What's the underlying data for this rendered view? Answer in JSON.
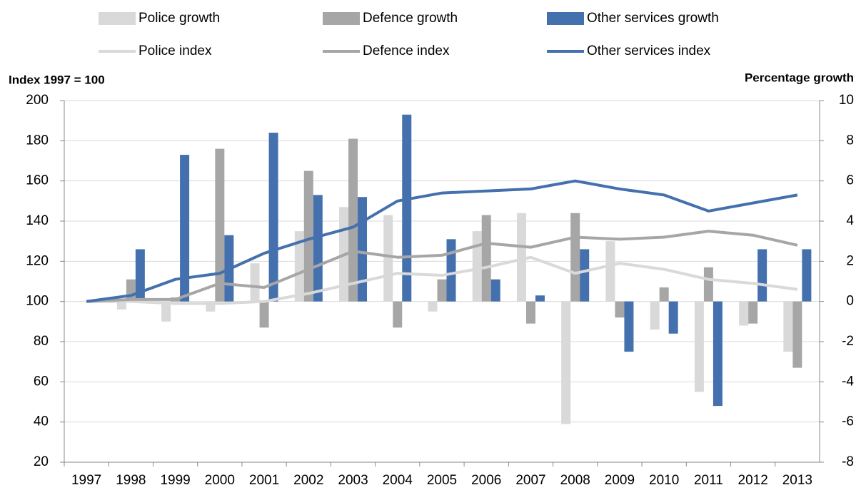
{
  "chart_data": {
    "type": "combo",
    "y_label": "Index 1997 = 100",
    "y2_label": "Percentage growth",
    "categories": [
      "1997",
      "1998",
      "1999",
      "2000",
      "2001",
      "2002",
      "2003",
      "2004",
      "2005",
      "2006",
      "2007",
      "2008",
      "2009",
      "2010",
      "2011",
      "2012",
      "2013"
    ],
    "ylim": [
      20,
      200
    ],
    "yticks": [
      20,
      40,
      60,
      80,
      100,
      120,
      140,
      160,
      180,
      200
    ],
    "y2lim": [
      -8,
      10
    ],
    "y2ticks": [
      -8,
      -6,
      -4,
      -2,
      0,
      2,
      4,
      6,
      8,
      10
    ],
    "grid": true,
    "series": [
      {
        "name": "Police growth",
        "type": "bar",
        "axis": "y2",
        "color": "#d9d9d9",
        "values": [
          null,
          -0.4,
          -1.0,
          -0.5,
          1.9,
          3.5,
          4.7,
          4.3,
          -0.5,
          3.5,
          4.4,
          -6.1,
          3.0,
          -1.4,
          -4.5,
          -1.2,
          -2.5
        ]
      },
      {
        "name": "Defence growth",
        "type": "bar",
        "axis": "y2",
        "color": "#a6a6a6",
        "values": [
          null,
          1.1,
          0.2,
          7.6,
          -1.3,
          6.5,
          8.1,
          -1.3,
          1.1,
          4.3,
          -1.1,
          4.4,
          -0.8,
          0.7,
          1.7,
          -1.1,
          -3.3
        ]
      },
      {
        "name": "Other services growth",
        "type": "bar",
        "axis": "y2",
        "color": "#4470ad",
        "values": [
          null,
          2.6,
          7.3,
          3.3,
          8.4,
          5.3,
          5.2,
          9.3,
          3.1,
          1.1,
          0.3,
          2.6,
          -2.5,
          -1.6,
          -5.2,
          2.6,
          2.6
        ]
      },
      {
        "name": "Police index",
        "type": "line",
        "color": "#d9d9d9",
        "values": [
          100,
          100,
          99,
          99,
          100,
          104,
          109,
          114,
          113,
          117,
          122,
          114,
          119,
          116,
          111,
          109,
          106
        ]
      },
      {
        "name": "Defence index",
        "type": "line",
        "color": "#a6a6a6",
        "values": [
          100,
          101,
          101,
          109,
          107,
          116,
          125,
          122,
          123,
          129,
          127,
          132,
          131,
          132,
          135,
          133,
          128
        ]
      },
      {
        "name": "Other services index",
        "type": "line",
        "color": "#4470ad",
        "values": [
          100,
          103,
          111,
          114,
          124,
          131,
          137,
          150,
          154,
          155,
          156,
          160,
          156,
          153,
          145,
          149,
          153
        ]
      }
    ]
  }
}
